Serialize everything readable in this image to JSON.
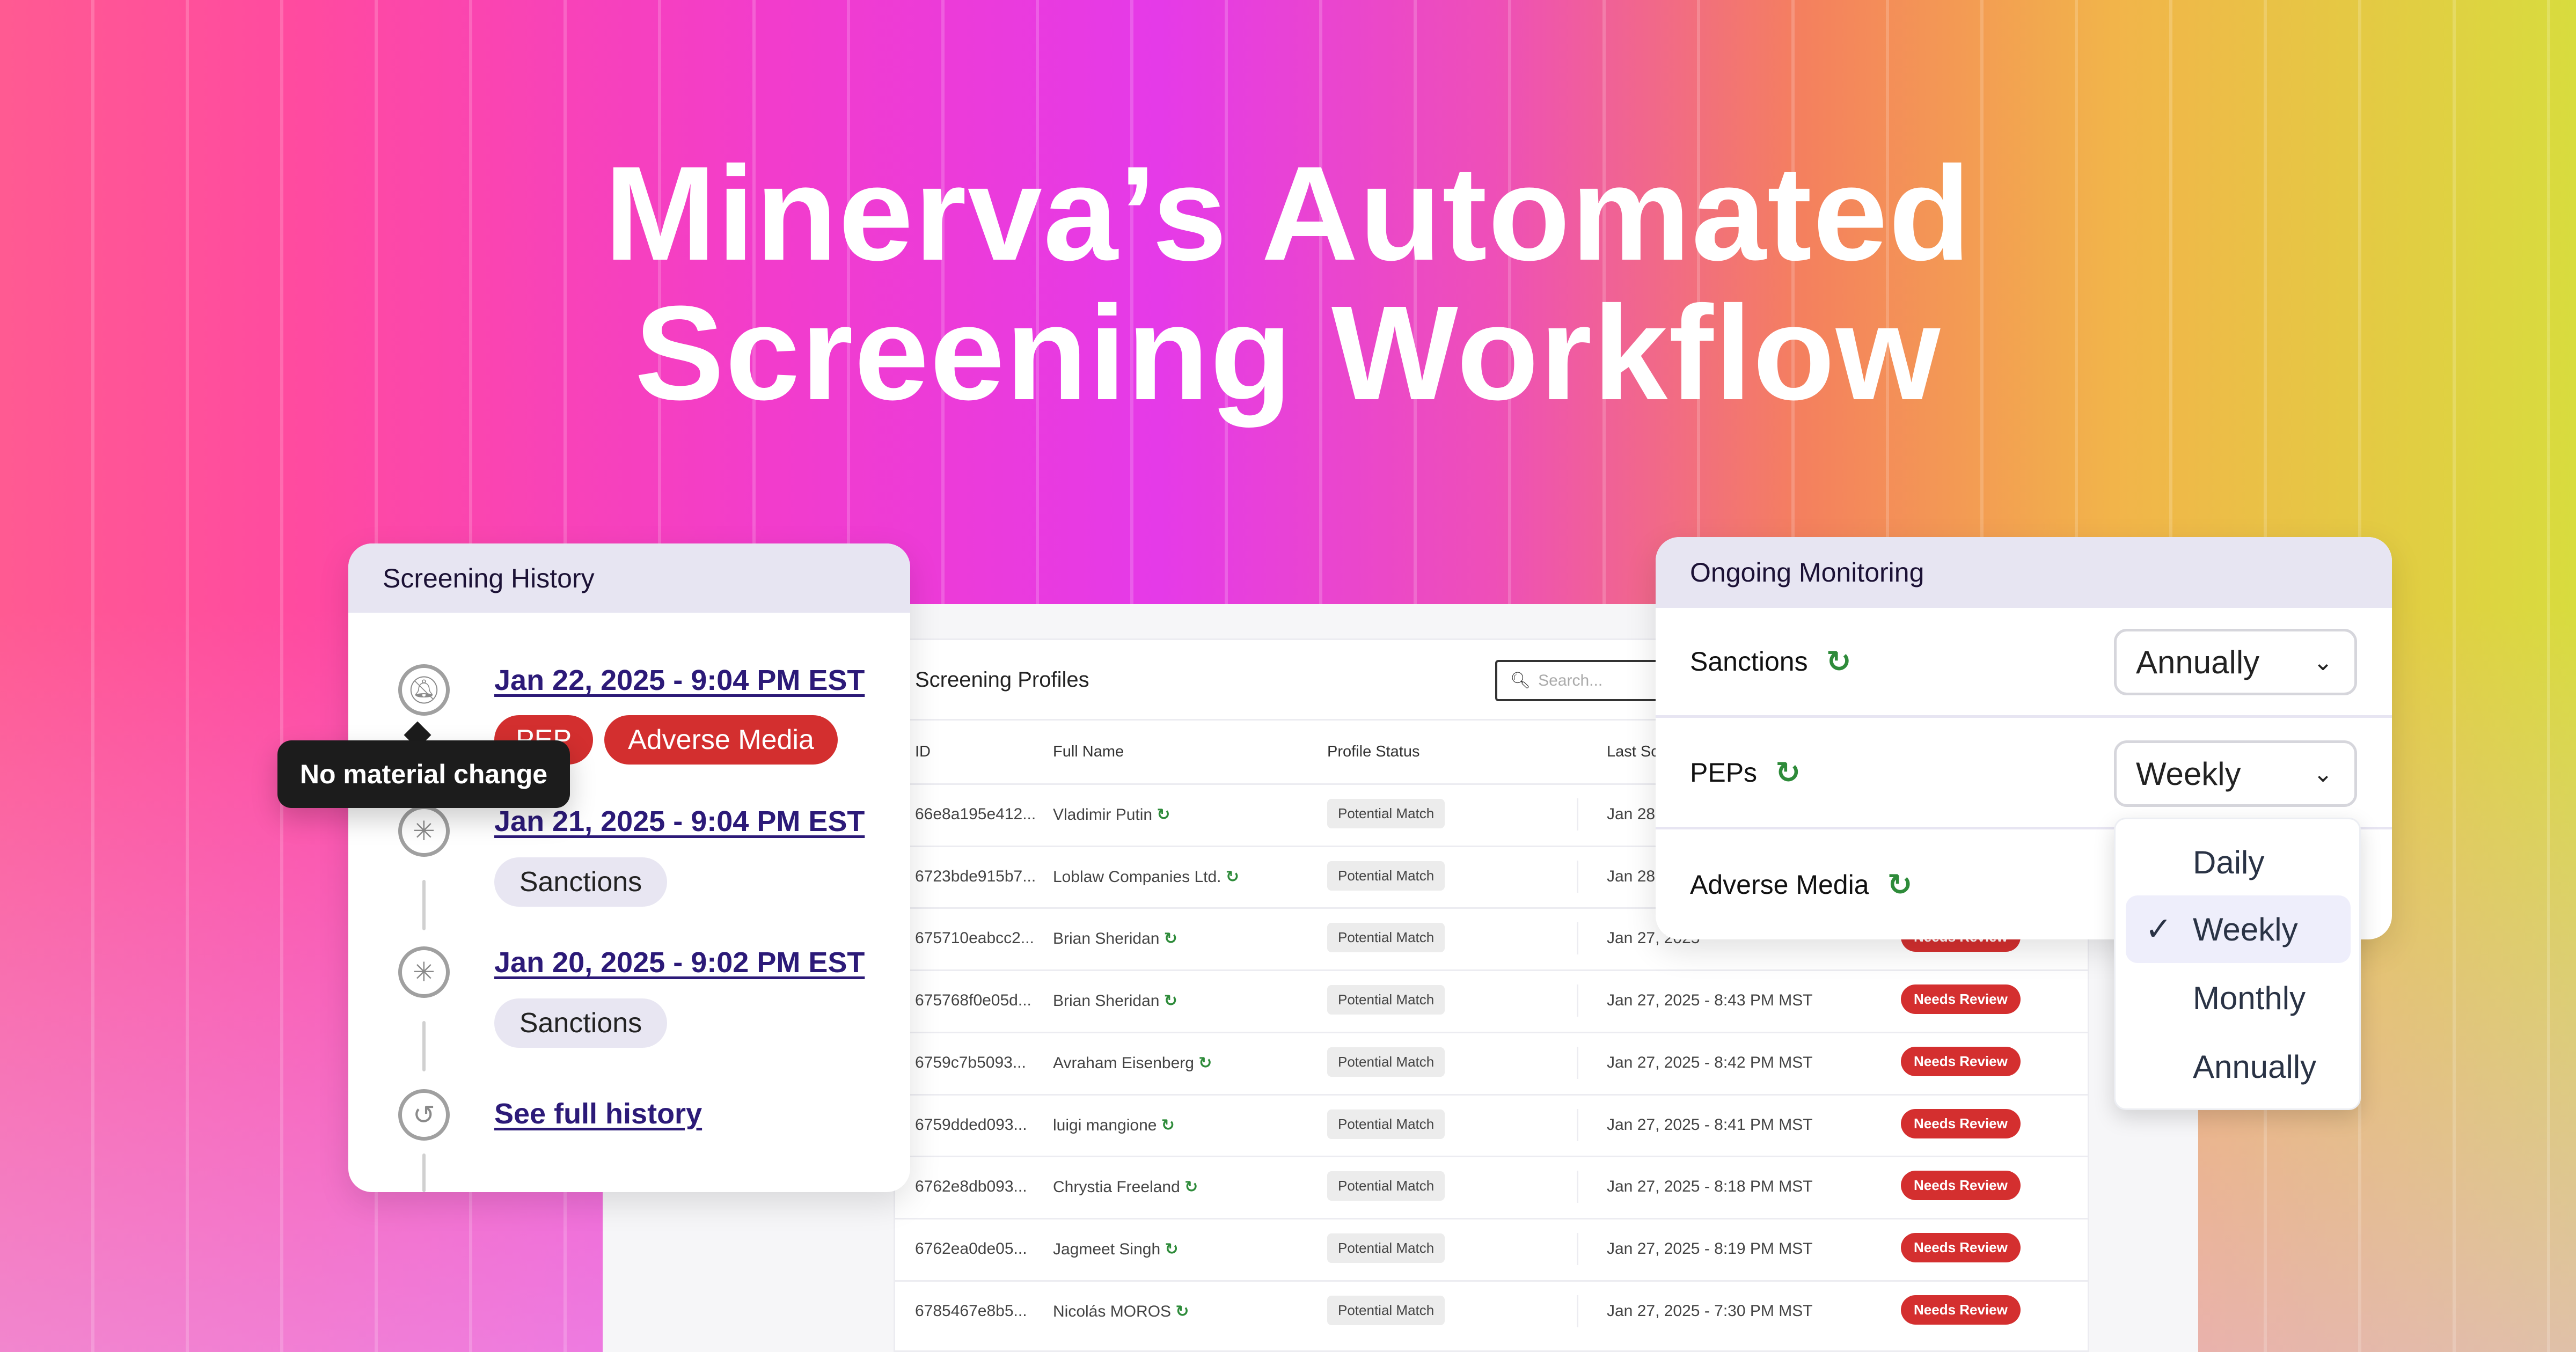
{
  "headline": {
    "line1": "Minerva’s Automated",
    "line2": "Screening Workflow"
  },
  "profiles": {
    "title": "Screening Profiles",
    "search_placeholder": "Search...",
    "columns": [
      "ID",
      "Full Name",
      "Profile Status",
      "Last Sc"
    ],
    "rows": [
      {
        "id": "66e8a195e412...",
        "name": "Vladimir Putin",
        "status": "Potential Match",
        "last": "Jan 28",
        "review": ""
      },
      {
        "id": "6723bde915b7...",
        "name": "Loblaw Companies Ltd.",
        "status": "Potential Match",
        "last": "Jan 28",
        "review": ""
      },
      {
        "id": "675710eabcc2...",
        "name": "Brian Sheridan",
        "status": "Potential Match",
        "last": "Jan 27, 2025",
        "review": "Needs Review"
      },
      {
        "id": "675768f0e05d...",
        "name": "Brian Sheridan",
        "status": "Potential Match",
        "last": "Jan 27, 2025 - 8:43 PM MST",
        "review": "Needs Review"
      },
      {
        "id": "6759c7b5093...",
        "name": "Avraham Eisenberg",
        "status": "Potential Match",
        "last": "Jan 27, 2025 - 8:42 PM MST",
        "review": "Needs Review"
      },
      {
        "id": "6759dded093...",
        "name": "luigi mangione",
        "status": "Potential Match",
        "last": "Jan 27, 2025 - 8:41 PM MST",
        "review": "Needs Review"
      },
      {
        "id": "6762e8db093...",
        "name": "Chrystia Freeland",
        "status": "Potential Match",
        "last": "Jan 27, 2025 - 8:18 PM MST",
        "review": "Needs Review"
      },
      {
        "id": "6762ea0de05...",
        "name": "Jagmeet Singh",
        "status": "Potential Match",
        "last": "Jan 27, 2025 - 8:19 PM MST",
        "review": "Needs Review"
      },
      {
        "id": "6785467e8b5...",
        "name": "Nicolás MOROS",
        "status": "Potential Match",
        "last": "Jan 27, 2025 - 7:30 PM MST",
        "review": "Needs Review"
      }
    ]
  },
  "history": {
    "title": "Screening History",
    "tooltip": "No material change",
    "entries": [
      {
        "date": "Jan 22, 2025 - 9:04 PM EST",
        "tags": [
          "PEP",
          "Adverse Media"
        ],
        "icon": "bell-off-icon"
      },
      {
        "date": "Jan 21, 2025 - 9:04 PM EST",
        "tags": [
          "Sanctions"
        ],
        "icon": "loader-icon"
      },
      {
        "date": "Jan 20, 2025 - 9:02 PM EST",
        "tags": [
          "Sanctions"
        ],
        "icon": "loader-icon"
      }
    ],
    "see_full": "See full history"
  },
  "monitoring": {
    "title": "Ongoing Monitoring",
    "rows": [
      {
        "label": "Sanctions",
        "value": "Annually"
      },
      {
        "label": "PEPs",
        "value": "Weekly"
      },
      {
        "label": "Adverse Media",
        "value": ""
      }
    ],
    "options": [
      "Daily",
      "Weekly",
      "Monthly",
      "Annually"
    ],
    "selected": "Weekly"
  },
  "colors": {
    "accent": "#2c1a78",
    "danger": "#d32f2f",
    "sync": "#2e8b3a",
    "header": "#e7e5f2"
  }
}
